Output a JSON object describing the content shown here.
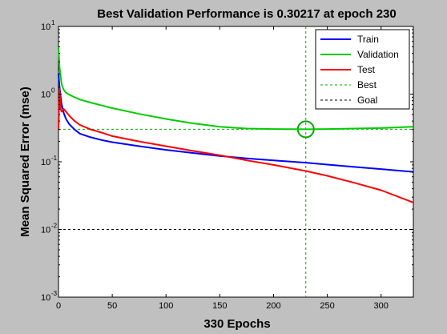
{
  "chart_data": {
    "type": "line",
    "title": "Best Validation Performance is 0.30217 at epoch 230",
    "xlabel": "330 Epochs",
    "ylabel": "Mean Squared Error  (mse)",
    "xlim": [
      0,
      330
    ],
    "ylim": [
      0.001,
      10
    ],
    "yscale": "log",
    "grid": false,
    "legend_position": "top-right",
    "x_ticks": [
      0,
      50,
      100,
      150,
      200,
      250,
      300
    ],
    "y_ticks": [
      {
        "value": 0.001,
        "base": "10",
        "exp": "-3"
      },
      {
        "value": 0.01,
        "base": "10",
        "exp": "-2"
      },
      {
        "value": 0.1,
        "base": "10",
        "exp": "-1"
      },
      {
        "value": 1,
        "base": "10",
        "exp": "0"
      },
      {
        "value": 10,
        "base": "10",
        "exp": "1"
      }
    ],
    "series": [
      {
        "name": "Train",
        "color": "#0000ff",
        "style": "solid",
        "x": [
          0,
          1,
          2,
          3,
          4,
          5,
          7,
          10,
          15,
          20,
          30,
          40,
          50,
          75,
          100,
          125,
          150,
          175,
          200,
          230,
          250,
          275,
          300,
          330
        ],
        "y": [
          2.0,
          1.3,
          0.9,
          0.7,
          0.6,
          0.52,
          0.43,
          0.36,
          0.3,
          0.26,
          0.23,
          0.21,
          0.195,
          0.17,
          0.15,
          0.135,
          0.122,
          0.112,
          0.105,
          0.097,
          0.091,
          0.084,
          0.078,
          0.071
        ]
      },
      {
        "name": "Validation",
        "color": "#00cc00",
        "style": "solid",
        "x": [
          0,
          1,
          2,
          3,
          4,
          5,
          7,
          10,
          15,
          20,
          30,
          50,
          75,
          100,
          125,
          150,
          175,
          200,
          230,
          250,
          275,
          300,
          330
        ],
        "y": [
          5.0,
          2.5,
          1.8,
          1.4,
          1.25,
          1.15,
          1.05,
          0.98,
          0.9,
          0.83,
          0.75,
          0.62,
          0.51,
          0.43,
          0.37,
          0.33,
          0.31,
          0.305,
          0.30217,
          0.305,
          0.31,
          0.315,
          0.33
        ]
      },
      {
        "name": "Test",
        "color": "#ff0000",
        "style": "solid",
        "x": [
          0,
          1,
          2,
          3,
          4,
          5,
          7,
          10,
          15,
          20,
          30,
          40,
          50,
          75,
          100,
          125,
          150,
          175,
          200,
          230,
          250,
          275,
          300,
          330
        ],
        "y": [
          0.3,
          1.2,
          0.6,
          0.55,
          0.58,
          0.6,
          0.55,
          0.48,
          0.4,
          0.35,
          0.3,
          0.27,
          0.24,
          0.2,
          0.17,
          0.145,
          0.125,
          0.105,
          0.09,
          0.073,
          0.062,
          0.049,
          0.038,
          0.025
        ]
      }
    ],
    "best": {
      "name": "Best",
      "color": "#00aa00",
      "style": "dotted",
      "epoch": 230,
      "value": 0.30217
    },
    "goal": {
      "name": "Goal",
      "color": "#000000",
      "style": "dotted",
      "value": 0.01
    }
  }
}
